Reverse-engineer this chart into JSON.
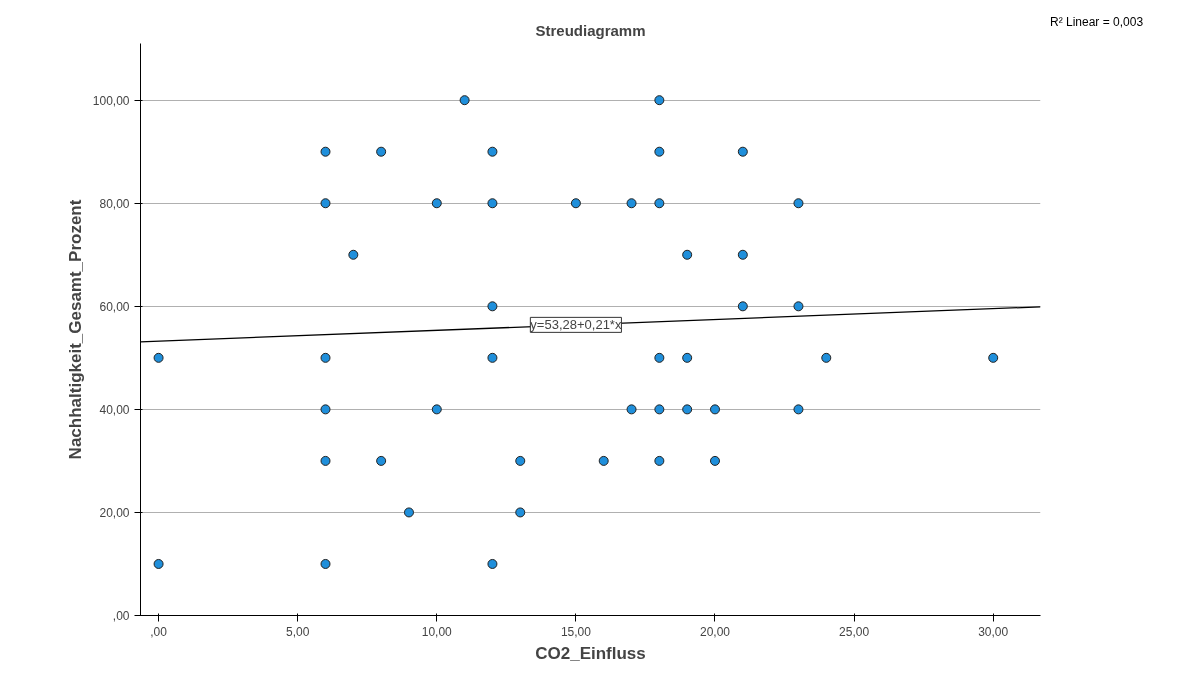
{
  "chart_data": {
    "type": "scatter",
    "title": "Streudiagramm",
    "xlabel": "CO2_Einfluss",
    "ylabel": "Nachhaltigkeit_Gesamt_Prozent",
    "xlim": [
      -0.65,
      31.7
    ],
    "ylim": [
      0,
      111
    ],
    "xticks": [
      {
        "value": 0,
        "label": ",00"
      },
      {
        "value": 5,
        "label": "5,00"
      },
      {
        "value": 10,
        "label": "10,00"
      },
      {
        "value": 15,
        "label": "15,00"
      },
      {
        "value": 20,
        "label": "20,00"
      },
      {
        "value": 25,
        "label": "25,00"
      },
      {
        "value": 30,
        "label": "30,00"
      }
    ],
    "yticks": [
      {
        "value": 0,
        "label": ",00"
      },
      {
        "value": 20,
        "label": "20,00"
      },
      {
        "value": 40,
        "label": "40,00"
      },
      {
        "value": 60,
        "label": "60,00"
      },
      {
        "value": 80,
        "label": "80,00"
      },
      {
        "value": 100,
        "label": "100,00"
      }
    ],
    "grid": "y",
    "marker": "circle",
    "series": [
      {
        "color": "#1f8fdb",
        "x": [
          0,
          0,
          6,
          6,
          6,
          6,
          6,
          6,
          7,
          8,
          8,
          9,
          10,
          10,
          11,
          12,
          12,
          12,
          12,
          12,
          13,
          13,
          15,
          16,
          17,
          17,
          18,
          18,
          18,
          18,
          18,
          18,
          19,
          19,
          19,
          20,
          20,
          21,
          21,
          21,
          23,
          23,
          23,
          24,
          30
        ],
        "values": [
          50,
          10,
          90,
          80,
          50,
          40,
          30,
          10,
          70,
          90,
          30,
          20,
          80,
          40,
          100,
          90,
          80,
          60,
          50,
          10,
          30,
          20,
          80,
          30,
          80,
          40,
          100,
          90,
          80,
          50,
          40,
          30,
          70,
          50,
          40,
          40,
          30,
          90,
          70,
          60,
          80,
          60,
          40,
          50,
          50
        ]
      },
      {
        "type": "line",
        "marker": "none",
        "color": "#000000",
        "x": [
          -0.65,
          31.7
        ],
        "values": [
          53.1,
          59.9
        ]
      }
    ],
    "annotations": [
      {
        "text": "y=53,28+0,21*x",
        "x": 15,
        "y": 56.4
      },
      "R² Linear = 0,003"
    ]
  }
}
